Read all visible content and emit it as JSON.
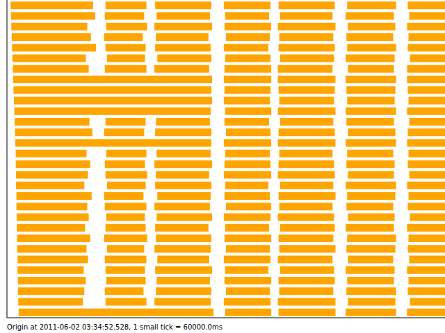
{
  "chart_data": {
    "type": "timeline",
    "xlabel": "Origin at 2011-06-02 03:34:52.528, 1 small tick = 60000.0ms",
    "color": "#ffa500",
    "tick_labels": false,
    "xlim": [
      0,
      600000
    ],
    "xticks": [
      0,
      60000,
      120000,
      180000,
      240000,
      300000,
      360000,
      420000,
      480000,
      540000,
      600000
    ],
    "rows": [
      [
        [
          5000,
          118000
        ],
        [
          135000,
          191000
        ],
        [
          203000,
          280000
        ],
        [
          297000,
          361000
        ],
        [
          372000,
          449000
        ],
        [
          466000,
          533000
        ],
        [
          549000,
          600000
        ]
      ],
      [
        [
          5500,
          121000
        ],
        [
          134000,
          188000
        ],
        [
          205000,
          278000
        ],
        [
          299000,
          359000
        ],
        [
          374000,
          446000
        ],
        [
          464000,
          530000
        ],
        [
          551000,
          600000
        ]
      ],
      [
        [
          6000,
          110000
        ],
        [
          136000,
          192000
        ],
        [
          202000,
          281000
        ],
        [
          298000,
          362000
        ],
        [
          371000,
          450000
        ],
        [
          467000,
          532000
        ],
        [
          548000,
          600000
        ]
      ],
      [
        [
          6500,
          115000
        ],
        [
          133000,
          186000
        ],
        [
          204000,
          276000
        ],
        [
          300000,
          360000
        ],
        [
          373000,
          447000
        ],
        [
          465000,
          529000
        ],
        [
          550000,
          600000
        ]
      ],
      [
        [
          7000,
          122000
        ],
        [
          135000,
          190000
        ],
        [
          203000,
          279000
        ],
        [
          297000,
          358000
        ],
        [
          372000,
          449000
        ],
        [
          466000,
          533000
        ],
        [
          549000,
          600000
        ]
      ],
      [
        [
          7500,
          108000
        ],
        [
          137000,
          189000
        ],
        [
          206000,
          280000
        ],
        [
          299000,
          361000
        ],
        [
          374000,
          448000
        ],
        [
          464000,
          531000
        ],
        [
          552000,
          600000
        ]
      ],
      [
        [
          8000,
          112000
        ],
        [
          134000,
          191000
        ],
        [
          202000,
          277000
        ],
        [
          298000,
          362000
        ],
        [
          371000,
          446000
        ],
        [
          467000,
          530000
        ],
        [
          548000,
          600000
        ]
      ],
      [
        [
          8500,
          281000
        ],
        [
          297000,
          362000
        ],
        [
          371000,
          450000
        ],
        [
          464000,
          533000
        ],
        [
          548000,
          600000
        ]
      ],
      [
        [
          9000,
          280000
        ],
        [
          298000,
          361000
        ],
        [
          372000,
          449000
        ],
        [
          465000,
          532000
        ],
        [
          549000,
          600000
        ]
      ],
      [
        [
          9500,
          281000
        ],
        [
          297000,
          360000
        ],
        [
          373000,
          448000
        ],
        [
          466000,
          531000
        ],
        [
          550000,
          600000
        ]
      ],
      [
        [
          10000,
          279000
        ],
        [
          299000,
          362000
        ],
        [
          371000,
          450000
        ],
        [
          464000,
          533000
        ],
        [
          548000,
          600000
        ]
      ],
      [
        [
          10500,
          113000
        ],
        [
          135000,
          190000
        ],
        [
          204000,
          278000
        ],
        [
          298000,
          359000
        ],
        [
          374000,
          447000
        ],
        [
          465000,
          530000
        ],
        [
          551000,
          600000
        ]
      ],
      [
        [
          11000,
          117000
        ],
        [
          133000,
          188000
        ],
        [
          203000,
          280000
        ],
        [
          300000,
          361000
        ],
        [
          372000,
          449000
        ],
        [
          467000,
          532000
        ],
        [
          549000,
          600000
        ]
      ],
      [
        [
          11500,
          280000
        ],
        [
          297000,
          362000
        ],
        [
          371000,
          450000
        ],
        [
          464000,
          533000
        ],
        [
          548000,
          600000
        ]
      ],
      [
        [
          12000,
          109000
        ],
        [
          136000,
          191000
        ],
        [
          205000,
          279000
        ],
        [
          299000,
          360000
        ],
        [
          373000,
          446000
        ],
        [
          466000,
          529000
        ],
        [
          550000,
          600000
        ]
      ],
      [
        [
          12000,
          114000
        ],
        [
          134000,
          189000
        ],
        [
          202000,
          281000
        ],
        [
          298000,
          361000
        ],
        [
          372000,
          448000
        ],
        [
          465000,
          531000
        ],
        [
          549000,
          600000
        ]
      ],
      [
        [
          12500,
          111000
        ],
        [
          135000,
          192000
        ],
        [
          204000,
          277000
        ],
        [
          297000,
          362000
        ],
        [
          371000,
          449000
        ],
        [
          467000,
          530000
        ],
        [
          551000,
          600000
        ]
      ],
      [
        [
          12500,
          106000
        ],
        [
          137000,
          190000
        ],
        [
          203000,
          280000
        ],
        [
          299000,
          358000
        ],
        [
          374000,
          447000
        ],
        [
          464000,
          533000
        ],
        [
          548000,
          600000
        ]
      ],
      [
        [
          13000,
          116000
        ],
        [
          133000,
          187000
        ],
        [
          206000,
          279000
        ],
        [
          298000,
          360000
        ],
        [
          372000,
          450000
        ],
        [
          466000,
          532000
        ],
        [
          550000,
          600000
        ]
      ],
      [
        [
          13000,
          110000
        ],
        [
          134000,
          191000
        ],
        [
          202000,
          278000
        ],
        [
          300000,
          362000
        ],
        [
          373000,
          446000
        ],
        [
          465000,
          529000
        ],
        [
          549000,
          600000
        ]
      ],
      [
        [
          13500,
          112000
        ],
        [
          136000,
          189000
        ],
        [
          205000,
          281000
        ],
        [
          297000,
          361000
        ],
        [
          371000,
          448000
        ],
        [
          467000,
          531000
        ],
        [
          552000,
          600000
        ]
      ],
      [
        [
          13500,
          107000
        ],
        [
          135000,
          190000
        ],
        [
          203000,
          276000
        ],
        [
          299000,
          359000
        ],
        [
          374000,
          449000
        ],
        [
          464000,
          530000
        ],
        [
          548000,
          600000
        ]
      ],
      [
        [
          14000,
          114000
        ],
        [
          133000,
          192000
        ],
        [
          204000,
          280000
        ],
        [
          298000,
          362000
        ],
        [
          372000,
          447000
        ],
        [
          466000,
          533000
        ],
        [
          550000,
          600000
        ]
      ],
      [
        [
          14000,
          109000
        ],
        [
          137000,
          188000
        ],
        [
          202000,
          279000
        ],
        [
          300000,
          360000
        ],
        [
          373000,
          450000
        ],
        [
          465000,
          532000
        ],
        [
          549000,
          600000
        ]
      ],
      [
        [
          14500,
          111000
        ],
        [
          134000,
          191000
        ],
        [
          206000,
          277000
        ],
        [
          297000,
          361000
        ],
        [
          371000,
          446000
        ],
        [
          467000,
          529000
        ],
        [
          551000,
          600000
        ]
      ],
      [
        [
          14500,
          105000
        ],
        [
          135000,
          189000
        ],
        [
          203000,
          281000
        ],
        [
          299000,
          358000
        ],
        [
          374000,
          448000
        ],
        [
          464000,
          531000
        ],
        [
          548000,
          600000
        ]
      ],
      [
        [
          15000,
          108000
        ],
        [
          136000,
          190000
        ],
        [
          205000,
          278000
        ],
        [
          298000,
          362000
        ],
        [
          372000,
          449000
        ],
        [
          466000,
          530000
        ],
        [
          550000,
          600000
        ]
      ],
      [
        [
          15000,
          106000
        ],
        [
          134000,
          187000
        ],
        [
          204000,
          280000
        ],
        [
          300000,
          360000
        ],
        [
          373000,
          447000
        ],
        [
          465000,
          533000
        ],
        [
          549000,
          600000
        ]
      ],
      [
        [
          15500,
          104000
        ],
        [
          135000,
          191000
        ],
        [
          202000,
          279000
        ],
        [
          297000,
          361000
        ],
        [
          371000,
          450000
        ],
        [
          467000,
          532000
        ],
        [
          552000,
          600000
        ]
      ],
      [
        [
          16000,
          283000
        ],
        [
          299000,
          362000
        ],
        [
          372000,
          450000
        ],
        [
          464000,
          533000
        ],
        [
          548000,
          600000
        ]
      ]
    ]
  }
}
